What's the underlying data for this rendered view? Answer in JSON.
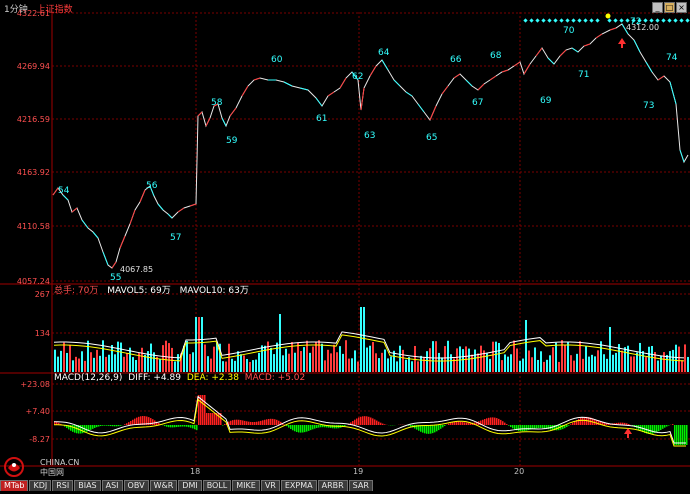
{
  "header": {
    "period": "1分钟",
    "index_name": "上证指数"
  },
  "colors": {
    "up": "#ff3c3c",
    "down": "#33ffff",
    "grid": "#7a0000",
    "price_label": "#ff5050",
    "wave_label": "#33ffff",
    "macd_fast": "#ffffff",
    "macd_slow": "#ffff00",
    "macd_bar_up": "#ff2020",
    "macd_bar_down": "#00ee00"
  },
  "price_axis": [
    "4322.61",
    "4269.94",
    "4216.59",
    "4163.92",
    "4110.58",
    "4057.24"
  ],
  "volume_axis": [
    "267",
    "134"
  ],
  "macd_axis": [
    "+23.08",
    "+7.40",
    "-8.27"
  ],
  "volume_legend": {
    "total": "总手: 70万",
    "mavol5": "MAVOL5: 69万",
    "mavol10": "MAVOL10: 63万"
  },
  "macd_legend": {
    "params": "MACD(12,26,9)",
    "diff": "DIFF: +4.89",
    "dea": "DEA: +2.38",
    "macd": "MACD: +5.02"
  },
  "date_labels": [
    "18",
    "19",
    "20"
  ],
  "price_annotations": {
    "low": "4067.85",
    "high": "4312.00"
  },
  "wave_labels": [
    "54",
    "55",
    "56",
    "57",
    "58",
    "59",
    "60",
    "61",
    "62",
    "63",
    "64",
    "65",
    "66",
    "67",
    "68",
    "69",
    "70",
    "71",
    "72",
    "73",
    "74"
  ],
  "tabs": [
    "MTab",
    "KDJ",
    "RSI",
    "BIAS",
    "ASI",
    "OBV",
    "W&R",
    "DMI",
    "BOLL",
    "MIKE",
    "VR",
    "EXPMA",
    "ARBR",
    "SAR"
  ],
  "logo_text": {
    "line1": "CHINA.CN",
    "line2": "中国网"
  },
  "window_buttons": [
    "_",
    "□",
    "×"
  ]
}
